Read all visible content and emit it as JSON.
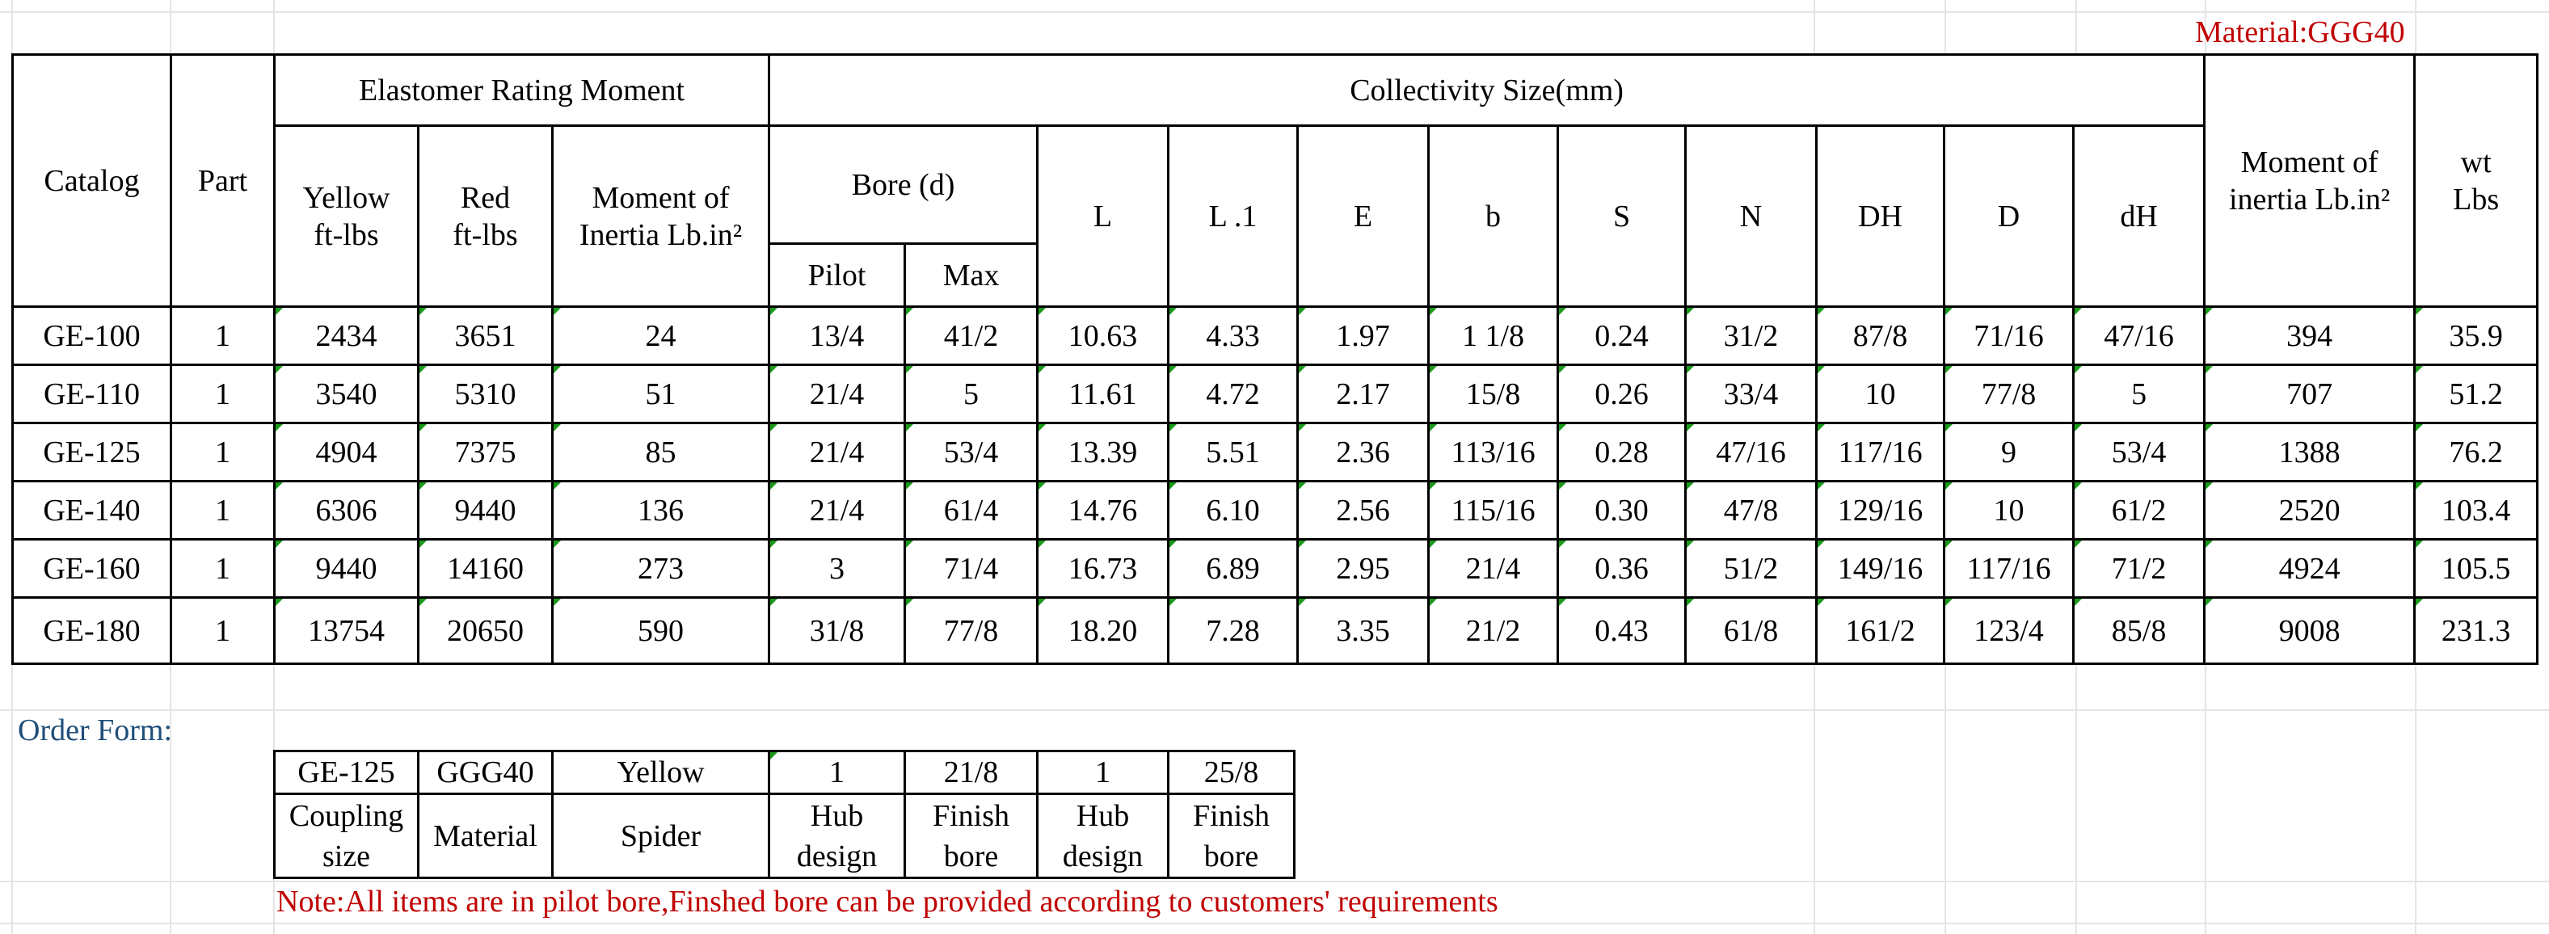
{
  "material_label": "Material:GGG40",
  "spec_table": {
    "headers": {
      "catalog": "Catalog",
      "part": "Part",
      "elastomer_group": "Elastomer Rating Moment",
      "yellow": [
        "Yellow",
        "ft-lbs"
      ],
      "red": [
        "Red",
        "ft-lbs"
      ],
      "moment_inertia_elastomer": [
        "Moment of",
        "Inertia Lb.in²"
      ],
      "collectivity_group": "Collectivity Size(mm)",
      "bore_group": "Bore (d)",
      "pilot": "Pilot",
      "max": "Max",
      "L": "L",
      "L1": "L .1",
      "E": "E",
      "b": "b",
      "S": "S",
      "N": "N",
      "DH": "DH",
      "D": "D",
      "dH": "dH",
      "moment_inertia": [
        "Moment of",
        "inertia Lb.in²"
      ],
      "wt": [
        "wt",
        "Lbs"
      ]
    },
    "rows": [
      [
        "GE-100",
        "1",
        "2434",
        "3651",
        "24",
        "13/4",
        "41/2",
        "10.63",
        "4.33",
        "1.97",
        "1 1/8",
        "0.24",
        "31/2",
        "87/8",
        "71/16",
        "47/16",
        "394",
        "35.9"
      ],
      [
        "GE-110",
        "1",
        "3540",
        "5310",
        "51",
        "21/4",
        "5",
        "11.61",
        "4.72",
        "2.17",
        "15/8",
        "0.26",
        "33/4",
        "10",
        "77/8",
        "5",
        "707",
        "51.2"
      ],
      [
        "GE-125",
        "1",
        "4904",
        "7375",
        "85",
        "21/4",
        "53/4",
        "13.39",
        "5.51",
        "2.36",
        "113/16",
        "0.28",
        "47/16",
        "117/16",
        "9",
        "53/4",
        "1388",
        "76.2"
      ],
      [
        "GE-140",
        "1",
        "6306",
        "9440",
        "136",
        "21/4",
        "61/4",
        "14.76",
        "6.10",
        "2.56",
        "115/16",
        "0.30",
        "47/8",
        "129/16",
        "10",
        "61/2",
        "2520",
        "103.4"
      ],
      [
        "GE-160",
        "1",
        "9440",
        "14160",
        "273",
        "3",
        "71/4",
        "16.73",
        "6.89",
        "2.95",
        "21/4",
        "0.36",
        "51/2",
        "149/16",
        "117/16",
        "71/2",
        "4924",
        "105.5"
      ],
      [
        "GE-180",
        "1",
        "13754",
        "20650",
        "590",
        "31/8",
        "77/8",
        "18.20",
        "7.28",
        "3.35",
        "21/2",
        "0.43",
        "61/8",
        "161/2",
        "123/4",
        "85/8",
        "9008",
        "231.3"
      ]
    ]
  },
  "order_form": {
    "label": "Order Form:",
    "values": [
      "GE-125",
      "GGG40",
      "Yellow",
      "1",
      "21/8",
      "1",
      "25/8"
    ],
    "captions": [
      [
        "Coupling",
        "size"
      ],
      [
        "Material"
      ],
      [
        "Spider"
      ],
      [
        "Hub",
        "design"
      ],
      [
        "Finish",
        "bore"
      ],
      [
        "Hub",
        "design"
      ],
      [
        "Finish",
        "bore"
      ]
    ]
  },
  "note": "Note:All items are in pilot bore,Finshed bore can be provided according to customers' requirements",
  "colors": {
    "note_red": "#c00000",
    "order_label_blue": "#1f4e79",
    "marker_green": "#1a9a1a"
  }
}
